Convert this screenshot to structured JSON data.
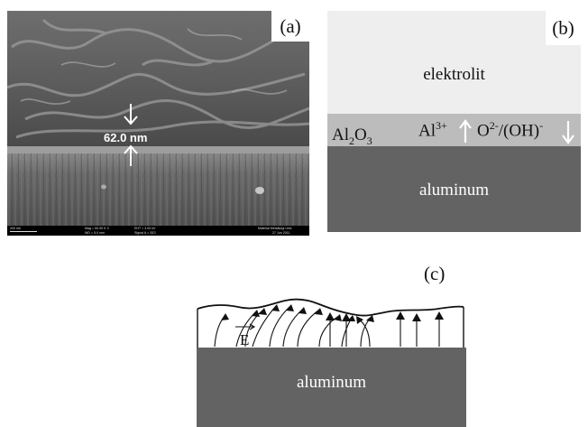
{
  "panel_a": {
    "label": "(a)",
    "thickness_label": "62.0 nm",
    "sem_info": {
      "scale_bar": "200 nm",
      "mag": "Mag = 50.00 K X",
      "wd": "WD = 5.0 mm",
      "eht": "EHT = 3.00 kV",
      "signal": "Signal A = SE2",
      "lab": "Material Metallurgi Univ",
      "date": "27 Jun 2011"
    }
  },
  "panel_b": {
    "label": "(b)",
    "electrolyte": "elektrolit",
    "oxide_base": "Al",
    "oxide_sub1": "2",
    "oxide_mid": "O",
    "oxide_sub2": "3",
    "cation_base": "Al",
    "cation_charge": "3+",
    "anion_base": "O",
    "anion_charge": "2-",
    "anion_alt": "/(OH)",
    "anion_alt_charge": "-",
    "metal": "aluminum",
    "colors": {
      "electrolyte": "#eeeeee",
      "oxide": "#bcbcbc",
      "metal": "#636363"
    }
  },
  "panel_c": {
    "label": "(c)",
    "field_symbol": "E",
    "metal": "aluminum"
  }
}
